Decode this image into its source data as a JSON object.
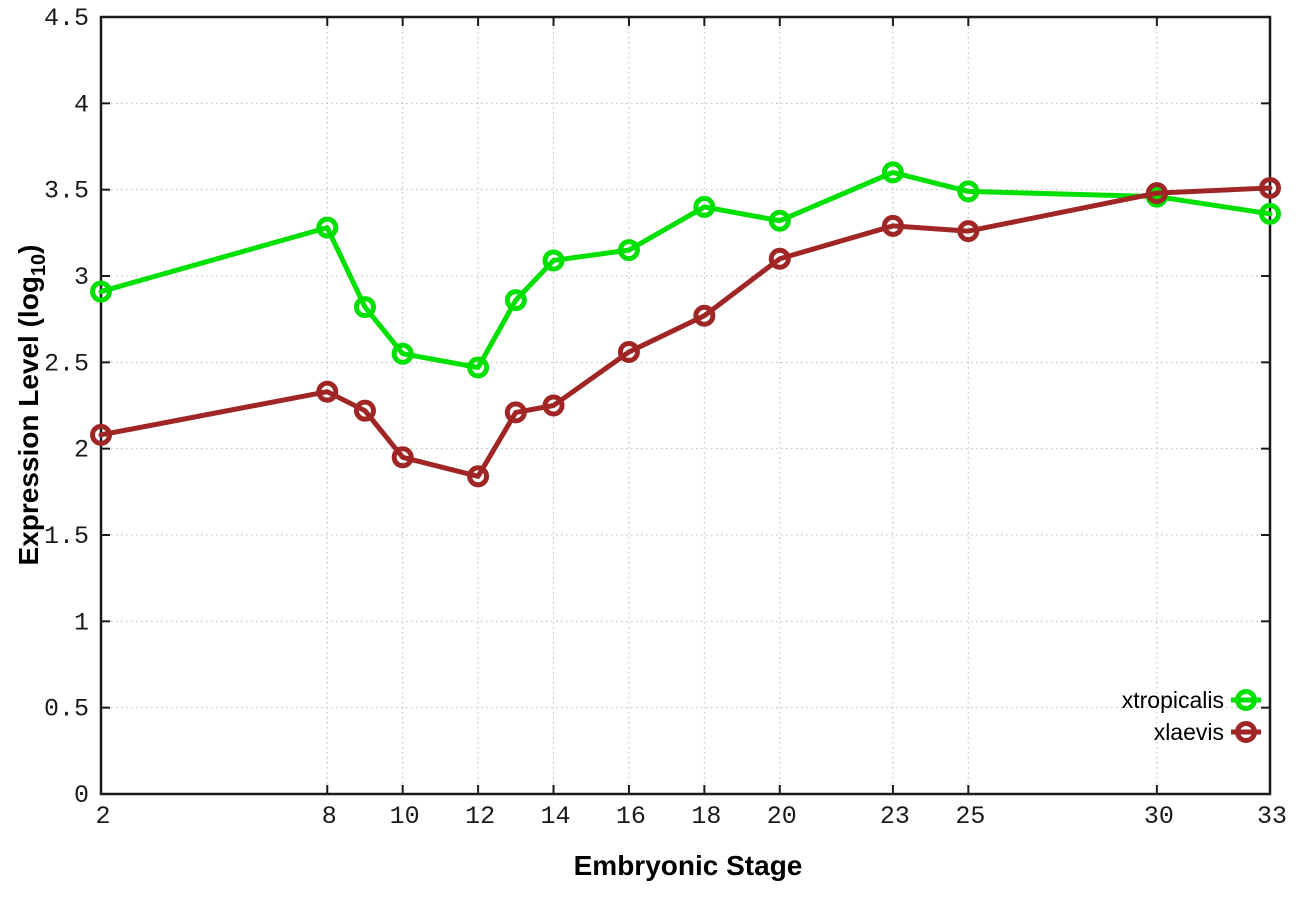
{
  "chart_data": {
    "type": "line",
    "title": "",
    "xlabel": "Embryonic Stage",
    "ylabel": "Expression Level (log10)",
    "ylabel_prefix": "Expression Level (log",
    "ylabel_sub": "10",
    "ylabel_suffix": ")",
    "xlim": [
      2,
      33
    ],
    "ylim": [
      0,
      4.5
    ],
    "x_ticks": [
      2,
      8,
      10,
      12,
      14,
      16,
      18,
      20,
      23,
      25,
      30,
      33
    ],
    "y_ticks": [
      0,
      0.5,
      1,
      1.5,
      2,
      2.5,
      3,
      3.5,
      4,
      4.5
    ],
    "grid": true,
    "grid_style": "dotted",
    "legend_position": "bottom-right",
    "colors": {
      "xtropicalis": "#00e000",
      "xlaevis": "#a02525",
      "border": "#1a1a1a",
      "grid": "#b8b8b8",
      "tick_text": "#1a1a1a"
    },
    "series": [
      {
        "name": "xtropicalis",
        "color": "#00e000",
        "points": [
          [
            2,
            2.91
          ],
          [
            8,
            3.28
          ],
          [
            9,
            2.82
          ],
          [
            10,
            2.55
          ],
          [
            12,
            2.47
          ],
          [
            13,
            2.86
          ],
          [
            14,
            3.09
          ],
          [
            16,
            3.15
          ],
          [
            18,
            3.4
          ],
          [
            20,
            3.32
          ],
          [
            23,
            3.6
          ],
          [
            25,
            3.49
          ],
          [
            30,
            3.46
          ],
          [
            33,
            3.36
          ]
        ]
      },
      {
        "name": "xlaevis",
        "color": "#a02525",
        "points": [
          [
            2,
            2.08
          ],
          [
            8,
            2.33
          ],
          [
            9,
            2.22
          ],
          [
            10,
            1.95
          ],
          [
            12,
            1.84
          ],
          [
            13,
            2.21
          ],
          [
            14,
            2.25
          ],
          [
            16,
            2.56
          ],
          [
            18,
            2.77
          ],
          [
            20,
            3.1
          ],
          [
            23,
            3.29
          ],
          [
            25,
            3.26
          ],
          [
            30,
            3.48
          ],
          [
            33,
            3.51
          ]
        ]
      }
    ]
  }
}
